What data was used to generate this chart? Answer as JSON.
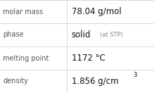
{
  "rows": [
    {
      "label": "molar mass",
      "value": "78.04 g/mol",
      "annotation": null,
      "superscript": null
    },
    {
      "label": "phase",
      "value": "solid",
      "annotation": " (at STP)",
      "superscript": null
    },
    {
      "label": "melting point",
      "value": "1172 °C",
      "annotation": null,
      "superscript": null
    },
    {
      "label": "density",
      "value": "1.856 g/cm",
      "annotation": null,
      "superscript": "3"
    }
  ],
  "bg_color": "#ffffff",
  "border_color": "#c8c8c8",
  "label_color": "#555555",
  "value_color": "#111111",
  "annotation_color": "#888888",
  "label_fontsize": 7.0,
  "value_fontsize": 8.5,
  "annotation_fontsize": 6.0,
  "superscript_fontsize": 6.0,
  "col_split": 0.435
}
